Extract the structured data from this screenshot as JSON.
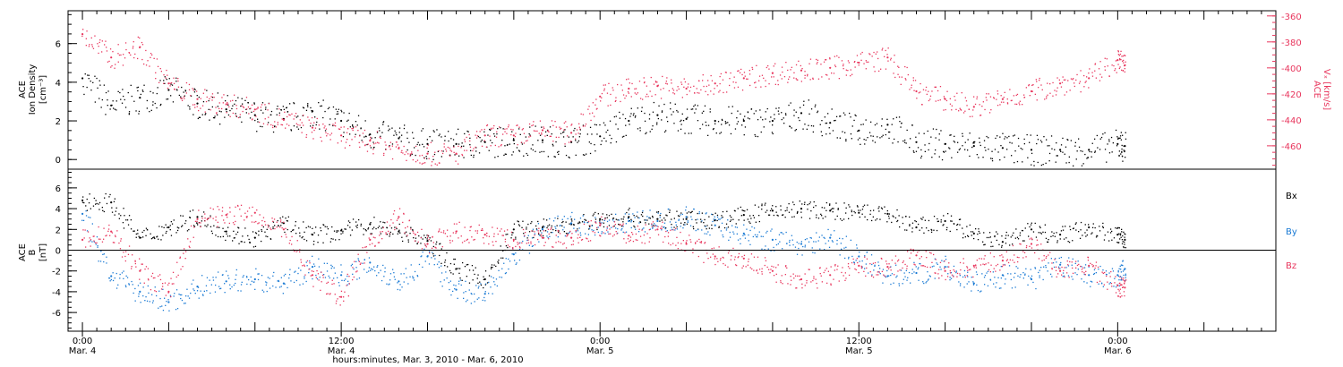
{
  "chart_data": [
    {
      "type": "scatter",
      "panel": "top",
      "ylabel_lines": [
        "ACE",
        "Ion Density"
      ],
      "ylabel_unit": "[cm⁻³]",
      "y2label_lines": [
        "ACE",
        "Vₓ [km/s]"
      ],
      "ylim": [
        -0.5,
        7.7
      ],
      "y2lim": [
        -478,
        -356
      ],
      "yticks": [
        "0",
        "2",
        "4",
        "6"
      ],
      "y2ticks": [
        "-360",
        "-380",
        "-400",
        "-420",
        "-440",
        "-460"
      ],
      "grid": false,
      "series": [
        {
          "color": "#000000",
          "x": [
            0,
            2,
            4,
            6,
            8,
            10,
            12,
            14,
            16,
            18,
            20,
            22,
            24,
            26,
            28,
            30,
            32,
            34,
            36,
            38,
            40,
            42,
            44,
            46,
            48,
            50,
            52,
            54,
            56,
            58,
            60,
            62,
            64,
            66,
            68,
            70,
            72,
            72.5
          ],
          "y": [
            4.2,
            2.8,
            3.2,
            3.6,
            2.9,
            2.6,
            2.3,
            2.1,
            2.5,
            2.0,
            1.3,
            1.1,
            0.8,
            0.8,
            0.9,
            1.0,
            1.0,
            0.9,
            1.2,
            2.0,
            2.3,
            2.1,
            2.0,
            2.0,
            2.0,
            2.4,
            1.9,
            1.5,
            1.8,
            0.9,
            0.8,
            0.7,
            0.6,
            0.5,
            0.5,
            0.5,
            0.8,
            0.7
          ]
        },
        {
          "axis": "right",
          "color": "#e8365d",
          "x": [
            0,
            2,
            4,
            6,
            8,
            10,
            12,
            14,
            16,
            18,
            20,
            22,
            24,
            26,
            28,
            30,
            32,
            34,
            36,
            38,
            40,
            42,
            44,
            46,
            48,
            50,
            52,
            54,
            56,
            58,
            60,
            62,
            64,
            66,
            68,
            70,
            72,
            72.5
          ],
          "y": [
            -374,
            -392,
            -384,
            -412,
            -424,
            -428,
            -432,
            -440,
            -446,
            -452,
            -456,
            -462,
            -466,
            -466,
            -452,
            -452,
            -448,
            -450,
            -422,
            -416,
            -414,
            -416,
            -412,
            -408,
            -404,
            -402,
            -400,
            -396,
            -392,
            -418,
            -424,
            -430,
            -424,
            -418,
            -412,
            -408,
            -394,
            -398
          ]
        }
      ]
    },
    {
      "type": "scatter",
      "panel": "bottom",
      "ylabel_lines": [
        "ACE",
        "B",
        "[nT]"
      ],
      "ylim": [
        -7.8,
        7.8
      ],
      "yticks": [
        "6",
        "4",
        "2",
        "0",
        "-2",
        "-4",
        "-6"
      ],
      "hline": 0,
      "grid": false,
      "xlim": [
        -1,
        83
      ],
      "xticks": [
        {
          "x": 0,
          "time": "0:00",
          "date": "Mar. 4"
        },
        {
          "x": 18,
          "time": "12:00",
          "date": "Mar. 4"
        },
        {
          "x": 36,
          "time": "0:00",
          "date": "Mar. 5"
        },
        {
          "x": 54,
          "time": "12:00",
          "date": "Mar. 5"
        },
        {
          "x": 72,
          "time": "0:00",
          "date": "Mar. 6"
        }
      ],
      "xlabel": "hours:minutes, Mar. 3, 2010 - Mar. 6, 2010",
      "series": [
        {
          "name": "Bx",
          "color": "#000000",
          "x": [
            0,
            2,
            4,
            6,
            8,
            10,
            12,
            14,
            16,
            18,
            20,
            22,
            24,
            26,
            28,
            30,
            32,
            34,
            36,
            38,
            40,
            42,
            44,
            46,
            48,
            50,
            52,
            54,
            56,
            58,
            60,
            62,
            64,
            66,
            68,
            70,
            72,
            72.5
          ],
          "y": [
            4.8,
            4.6,
            1.2,
            2.2,
            3.2,
            1.8,
            1.2,
            2.6,
            1.5,
            1.9,
            2.5,
            1.8,
            0.9,
            -1.8,
            -2.8,
            2.0,
            2.2,
            2.5,
            3.0,
            3.2,
            3.0,
            3.0,
            2.9,
            3.4,
            3.8,
            4.0,
            3.8,
            3.6,
            3.5,
            2.2,
            2.8,
            1.6,
            0.8,
            2.0,
            1.5,
            2.2,
            1.5,
            1.0
          ]
        },
        {
          "name": "By",
          "color": "#1a7ad4",
          "x": [
            0,
            2,
            4,
            6,
            8,
            10,
            12,
            14,
            16,
            18,
            20,
            22,
            24,
            26,
            28,
            30,
            32,
            34,
            36,
            38,
            40,
            42,
            44,
            46,
            48,
            50,
            52,
            54,
            56,
            58,
            60,
            62,
            64,
            66,
            68,
            70,
            72,
            72.5
          ],
          "y": [
            3.5,
            -2.5,
            -4.0,
            -5.0,
            -3.5,
            -3.0,
            -2.8,
            -3.2,
            -1.6,
            -2.4,
            -1.2,
            -3.0,
            -0.6,
            -3.8,
            -4.2,
            -0.4,
            2.0,
            2.6,
            2.4,
            2.8,
            2.8,
            3.2,
            2.4,
            1.6,
            1.0,
            0.6,
            1.2,
            -0.6,
            -2.5,
            -2.2,
            -1.6,
            -3.2,
            -2.4,
            -2.8,
            -1.4,
            -2.4,
            -2.4,
            -1.8
          ]
        },
        {
          "name": "Bz",
          "color": "#e8365d",
          "x": [
            0,
            2,
            4,
            6,
            8,
            10,
            12,
            14,
            16,
            18,
            20,
            22,
            24,
            26,
            28,
            30,
            32,
            34,
            36,
            38,
            40,
            42,
            44,
            46,
            48,
            50,
            52,
            54,
            56,
            58,
            60,
            62,
            64,
            66,
            68,
            70,
            72,
            72.5
          ],
          "y": [
            1.0,
            1.8,
            -2.0,
            -4.0,
            3.0,
            3.4,
            3.6,
            2.0,
            -2.4,
            -4.5,
            1.0,
            3.2,
            0.6,
            1.8,
            1.5,
            1.0,
            1.2,
            1.2,
            2.4,
            1.4,
            2.0,
            0.6,
            -0.6,
            -0.8,
            -2.0,
            -2.8,
            -2.4,
            -1.5,
            -1.6,
            -0.5,
            -2.0,
            -1.5,
            -1.0,
            0.6,
            -2.0,
            -1.5,
            -3.4,
            -3.6
          ]
        }
      ]
    }
  ]
}
